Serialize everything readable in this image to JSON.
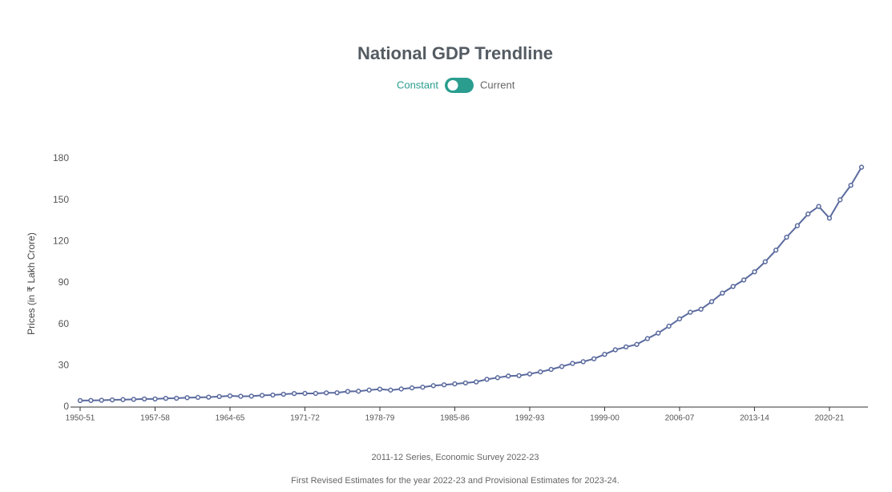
{
  "chart_data": {
    "type": "line",
    "title": "National GDP Trendline",
    "toggle": {
      "left": "Constant",
      "right": "Current"
    },
    "y_label": "Prices (in ₹ Lakh Crore)",
    "notes": [
      "2011-12 Series, Economic Survey 2022-23",
      "First Revised Estimates for the year 2022-23 and Provisional Estimates for 2023-24."
    ],
    "categories": [
      "1950-51",
      null,
      null,
      null,
      null,
      null,
      null,
      "1957-58",
      null,
      null,
      null,
      null,
      null,
      null,
      "1964-65",
      null,
      null,
      null,
      null,
      null,
      null,
      "1971-72",
      null,
      null,
      null,
      null,
      null,
      null,
      "1978-79",
      null,
      null,
      null,
      null,
      null,
      null,
      "1985-86",
      null,
      null,
      null,
      null,
      null,
      null,
      "1992-93",
      null,
      null,
      null,
      null,
      null,
      null,
      "1999-00",
      null,
      null,
      null,
      null,
      null,
      null,
      "2006-07",
      null,
      null,
      null,
      null,
      null,
      null,
      "2013-14",
      null,
      null,
      null,
      null,
      null,
      null,
      "2020-21",
      null,
      null,
      null
    ],
    "series": [
      {
        "color": "#5a6a9e",
        "values": [
          4.7,
          4.8,
          4.95,
          5.2,
          5.4,
          5.6,
          5.9,
          5.9,
          6.3,
          6.4,
          6.8,
          7.0,
          7.2,
          7.6,
          8.1,
          7.8,
          7.9,
          8.5,
          8.7,
          9.3,
          9.8,
          9.9,
          9.9,
          10.3,
          10.4,
          11.3,
          11.5,
          12.3,
          13.0,
          12.3,
          13.1,
          13.9,
          14.4,
          15.5,
          16.1,
          16.8,
          17.5,
          18.2,
          20.1,
          21.3,
          22.5,
          22.8,
          24.0,
          25.5,
          27.3,
          29.4,
          31.6,
          32.9,
          35.0,
          38.2,
          41.5,
          43.6,
          45.4,
          49.6,
          53.6,
          58.6,
          63.9,
          68.7,
          70.9,
          76.4,
          82.6,
          87.4,
          92.1,
          98.0,
          105.3,
          113.7,
          123.1,
          131.4,
          139.9,
          145.4,
          136.9,
          150.2,
          160.7,
          173.8
        ]
      }
    ],
    "ylim": [
      0,
      180
    ],
    "yticks": [
      0,
      30,
      60,
      90,
      120,
      150,
      180
    ],
    "grid": false
  }
}
